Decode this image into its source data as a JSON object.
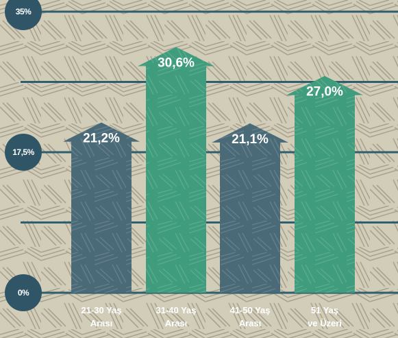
{
  "colors": {
    "background": "#d2cdb9",
    "gridline": "#2e5f6e",
    "axis_badge": "#2f5566",
    "bar_dark": "#4a6a78",
    "bar_green": "#3f9c7c",
    "text": "#ffffff"
  },
  "chart_data": {
    "type": "bar",
    "title": "",
    "xlabel": "",
    "ylabel": "",
    "ylim": [
      0,
      35
    ],
    "y_tick_labels": [
      {
        "value": 35,
        "label": "35%"
      },
      {
        "value": 17.5,
        "label": "17,5%"
      },
      {
        "value": 0,
        "label": "0%"
      }
    ],
    "gridlines": [
      0,
      8.75,
      17.5,
      26.25,
      35
    ],
    "grid": true,
    "categories": [
      {
        "line1": "21-30 Yaş",
        "line2": "Arası"
      },
      {
        "line1": "31-40 Yaş",
        "line2": "Arası"
      },
      {
        "line1": "41-50 Yaş",
        "line2": "Arası"
      },
      {
        "line1": "51 Yaş",
        "line2": "ve Üzeri"
      }
    ],
    "values": [
      21.2,
      30.6,
      21.1,
      27.0
    ],
    "value_labels": [
      "21,2%",
      "30,6%",
      "21,1%",
      "27,0%"
    ],
    "bar_colors": [
      "#4a6a78",
      "#3f9c7c",
      "#4a6a78",
      "#3f9c7c"
    ]
  }
}
